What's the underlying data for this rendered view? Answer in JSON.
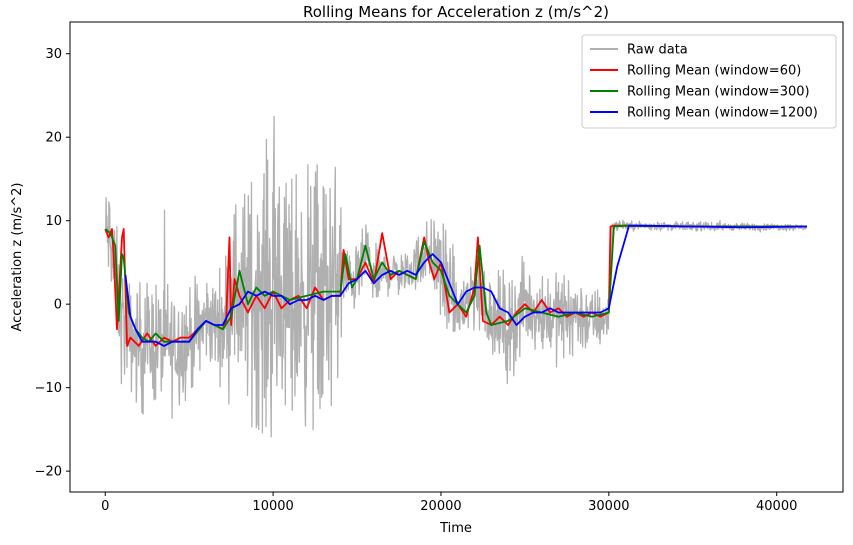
{
  "chart_data": {
    "type": "line",
    "title": "Rolling Means for Acceleration z (m/s^2)",
    "xlabel": "Time",
    "ylabel": "Acceleration z (m/s^2)",
    "xlim": [
      -2100,
      43950
    ],
    "ylim": [
      -22.5,
      33.8
    ],
    "xticks": [
      0,
      10000,
      20000,
      30000,
      40000
    ],
    "yticks": [
      -20,
      -10,
      0,
      10,
      20,
      30
    ],
    "grid": false,
    "legend_position": "top-right",
    "raw_noise_profile": {
      "x": [
        0,
        300,
        1000,
        1500,
        2000,
        3000,
        4000,
        5000,
        6000,
        7000,
        7500,
        8000,
        9000,
        10000,
        11000,
        12000,
        13000,
        14000,
        14200,
        15000,
        16000,
        17000,
        18000,
        19000,
        20000,
        21000,
        22000,
        23000,
        24000,
        25000,
        26000,
        27000,
        28000,
        29000,
        30000,
        30200,
        31000,
        35000,
        41800
      ],
      "amplitude": [
        4.5,
        5,
        6,
        5,
        6,
        6,
        6,
        5,
        4,
        5,
        8,
        10,
        12,
        14,
        12,
        12,
        13,
        10,
        3,
        3,
        3,
        2,
        2,
        3,
        5,
        4,
        4,
        4,
        5,
        4,
        4,
        4,
        4,
        3,
        3,
        0.4,
        0.4,
        0.4,
        0.3
      ]
    },
    "series": [
      {
        "name": "Raw data",
        "color": "#b0b0b0",
        "role": "raw",
        "x": [
          0,
          100,
          300,
          600,
          1000,
          1500,
          2000,
          3000,
          4000,
          5000,
          6000,
          7000,
          7500,
          8000,
          9000,
          10000,
          11000,
          12000,
          13000,
          14000,
          14200,
          15000,
          15500,
          16000,
          17000,
          18000,
          19000,
          19500,
          20000,
          21000,
          22000,
          23000,
          24000,
          25000,
          26000,
          27000,
          28000,
          29000,
          30000,
          30200,
          31000,
          35000,
          41800
        ],
        "y": [
          8.5,
          8.5,
          8,
          3,
          -2,
          -4,
          -5,
          -4.5,
          -5,
          -4.5,
          -2,
          -2.5,
          2,
          1,
          1,
          1.5,
          0.5,
          1,
          1,
          3.5,
          3,
          3,
          6,
          3,
          4,
          3.5,
          6,
          6,
          4,
          -1,
          2,
          -1,
          -3,
          0,
          -1,
          -1.5,
          -1,
          -2,
          -1.5,
          9.4,
          9.4,
          9.3,
          9.2
        ]
      },
      {
        "name": "Rolling Mean (window=60)",
        "color": "#ff0000",
        "x": [
          0,
          200,
          400,
          500,
          700,
          1000,
          1100,
          1300,
          1500,
          2000,
          2500,
          3000,
          3500,
          4000,
          4500,
          5000,
          5500,
          6000,
          6500,
          7000,
          7200,
          7400,
          7500,
          7700,
          8000,
          8500,
          9000,
          9500,
          10000,
          10500,
          11000,
          11500,
          12000,
          12500,
          13000,
          13500,
          14000,
          14200,
          14500,
          15000,
          15500,
          16000,
          16500,
          17000,
          17500,
          18000,
          18500,
          19000,
          19300,
          19600,
          20000,
          20500,
          21000,
          21500,
          22000,
          22200,
          22500,
          23000,
          23500,
          24000,
          24500,
          25000,
          25500,
          26000,
          26500,
          27000,
          27500,
          28000,
          28500,
          29000,
          29500,
          30000,
          30100,
          30300,
          31000,
          35000,
          41800
        ],
        "y": [
          9,
          8,
          9,
          6,
          -3,
          8,
          9,
          -5,
          -4,
          -5,
          -3.5,
          -5,
          -4,
          -4.5,
          -4,
          -4,
          -3,
          -2,
          -2.5,
          -3,
          -2,
          8,
          -2.5,
          3,
          1,
          -1,
          1,
          -0.5,
          1.5,
          -0.5,
          0.5,
          1,
          -0.5,
          2,
          0.5,
          1,
          1,
          6.5,
          3,
          3,
          5,
          2.5,
          8.5,
          3,
          4,
          3.5,
          3,
          8,
          5,
          3,
          5,
          -1,
          0,
          -1.5,
          2,
          8,
          -2,
          -2.5,
          -1.5,
          -2.5,
          -1,
          0,
          -1,
          0.5,
          -1,
          -0.5,
          -1.5,
          -1,
          -1.5,
          -1,
          -1.5,
          -1,
          9.3,
          9.4,
          9.4,
          9.3,
          9.3
        ]
      },
      {
        "name": "Rolling Mean (window=300)",
        "color": "#008000",
        "x": [
          0,
          300,
          600,
          800,
          1000,
          1100,
          1400,
          1800,
          2200,
          2600,
          3000,
          3500,
          4000,
          4500,
          5000,
          6000,
          7000,
          7500,
          8000,
          8500,
          9000,
          9500,
          10000,
          11000,
          12000,
          13000,
          14000,
          14300,
          14700,
          15000,
          15500,
          16000,
          16500,
          17000,
          17500,
          18000,
          18500,
          19000,
          19500,
          20000,
          20500,
          21000,
          21500,
          22000,
          22300,
          22700,
          23000,
          24000,
          25000,
          26000,
          27000,
          28000,
          29000,
          30000,
          30300,
          31000,
          35000,
          41800
        ],
        "y": [
          9,
          8.5,
          7,
          -2,
          6,
          5.5,
          -1,
          -3,
          -4,
          -4.5,
          -3.5,
          -4.5,
          -4.5,
          -4.5,
          -4.5,
          -2,
          -3,
          -1.5,
          4,
          0,
          2,
          1,
          1.5,
          0.5,
          1,
          1.5,
          1.5,
          6,
          2,
          3,
          7,
          3,
          5,
          3.5,
          4,
          3.5,
          3,
          7.5,
          5,
          4,
          1,
          0,
          -1,
          1,
          7,
          -1,
          -2.5,
          -2,
          -0.5,
          -1,
          -1.5,
          -1,
          -1.5,
          -1,
          9.3,
          9.4,
          9.3,
          9.3
        ]
      },
      {
        "name": "Rolling Mean (window=1200)",
        "color": "#0000ff",
        "x": [
          1200,
          1500,
          1800,
          2200,
          2600,
          3000,
          3500,
          4000,
          4500,
          5000,
          5500,
          6000,
          6500,
          7000,
          7500,
          8000,
          8500,
          9000,
          9500,
          10000,
          10500,
          11000,
          11500,
          12000,
          12500,
          13000,
          13500,
          14000,
          14500,
          15000,
          15500,
          16000,
          16500,
          17000,
          17500,
          18000,
          18500,
          19000,
          19500,
          20000,
          20500,
          21000,
          21500,
          22000,
          22500,
          23000,
          23500,
          24000,
          24500,
          25000,
          25500,
          26000,
          26500,
          27000,
          27500,
          28000,
          28500,
          29000,
          29500,
          30000,
          30500,
          31200,
          32000,
          35000,
          38000,
          41800
        ],
        "y": [
          3.5,
          -1.5,
          -3,
          -4.5,
          -4.5,
          -4.5,
          -5,
          -4.5,
          -4.5,
          -4.5,
          -3,
          -2,
          -2.5,
          -2.5,
          -0.5,
          0,
          1.5,
          1,
          1.5,
          1,
          1,
          0,
          0.5,
          0.5,
          1,
          0.5,
          1,
          1,
          2.5,
          3,
          4,
          2.5,
          3.5,
          4,
          3.5,
          4,
          3.5,
          5,
          6,
          5,
          2.5,
          0,
          1.5,
          2,
          2,
          1.5,
          -0.5,
          -1,
          -2.5,
          -1.5,
          -1,
          -1,
          -0.5,
          -1,
          -1,
          -1,
          -1,
          -1,
          -1,
          -0.5,
          4.5,
          9.4,
          9.4,
          9.3,
          9.2,
          9.3
        ]
      }
    ]
  }
}
